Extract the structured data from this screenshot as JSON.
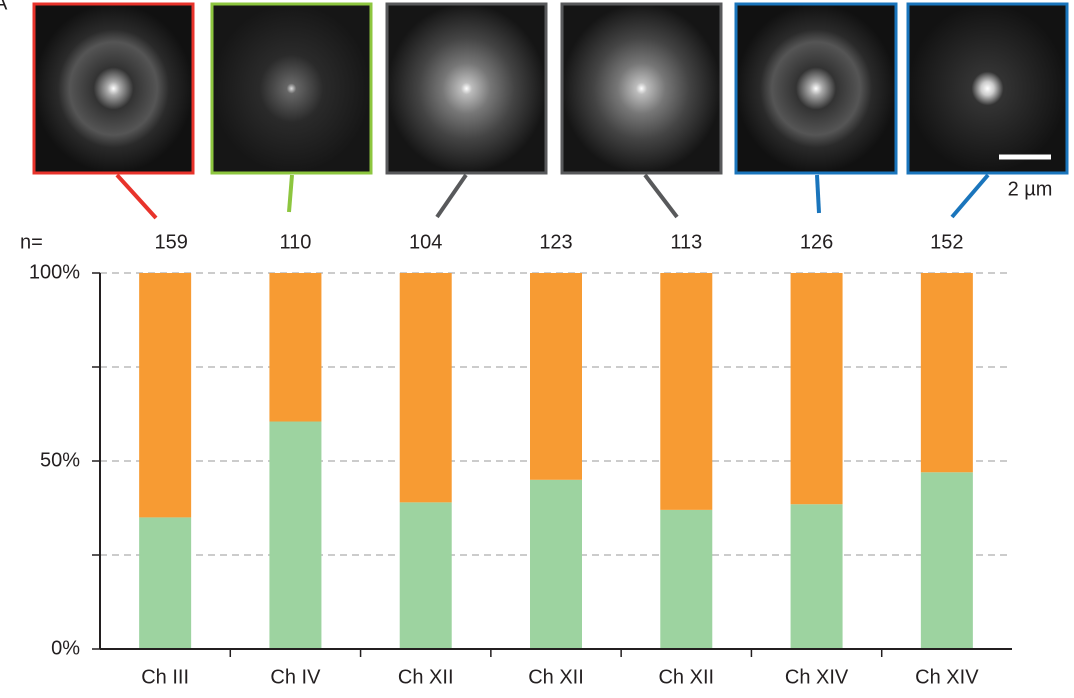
{
  "panel_label": "A",
  "scale_bar_label": "2 µm",
  "chart_data": {
    "type": "stacked-bar",
    "categories": [
      "Ch III",
      "Ch IV",
      "Ch XII",
      "Ch XII",
      "Ch XII",
      "Ch XIV",
      "Ch XIV"
    ],
    "category_colors": [
      "#e8332b",
      "#8dc63f",
      "#58595b",
      "#58595b",
      "#58595b",
      "#1a75bc",
      "#1a75bc"
    ],
    "n_label": "n=",
    "n": [
      159,
      110,
      104,
      123,
      113,
      126,
      152
    ],
    "series": [
      {
        "color": "#9dd3a0",
        "values": [
          35,
          60.5,
          39,
          45,
          37,
          38.5,
          47
        ]
      },
      {
        "color": "#f79b33",
        "values": [
          65,
          39.5,
          61,
          55,
          63,
          61.5,
          53
        ]
      }
    ],
    "ylim": [
      0,
      100
    ],
    "yticks": [
      {
        "value": 0,
        "label": "0%"
      },
      {
        "value": 25,
        "label": null
      },
      {
        "value": 50,
        "label": "50%"
      },
      {
        "value": 75,
        "label": null
      },
      {
        "value": 100,
        "label": "100%"
      }
    ],
    "grid": true
  }
}
